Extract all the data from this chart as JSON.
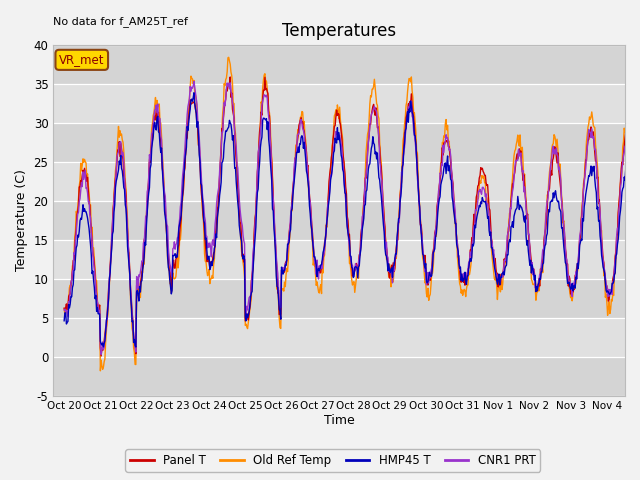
{
  "title": "Temperatures",
  "xlabel": "Time",
  "ylabel": "Temperature (C)",
  "ylim": [
    -5,
    40
  ],
  "background_color": "#e8e8e8",
  "figure_bg": "#f2f2f2",
  "no_data_text": "No data for f_AM25T_ref",
  "vr_met_label": "VR_met",
  "xtick_labels": [
    "Oct 20",
    "Oct 21",
    "Oct 22",
    "Oct 23",
    "Oct 24",
    "Oct 25",
    "Oct 26",
    "Oct 27",
    "Oct 28",
    "Oct 29",
    "Oct 30",
    "Oct 31",
    "Nov 1",
    "Nov 2",
    "Nov 3",
    "Nov 4"
  ],
  "legend_labels": [
    "Panel T",
    "Old Ref Temp",
    "HMP45 T",
    "CNR1 PRT"
  ],
  "line_colors": [
    "#cc0000",
    "#ff8c00",
    "#0000bb",
    "#9933cc"
  ],
  "ytick_positions": [
    -5,
    0,
    5,
    10,
    15,
    20,
    25,
    30,
    35,
    40
  ],
  "title_fontsize": 12,
  "band_colors": [
    "#d4d4d4",
    "#e0e0e0"
  ],
  "daily_max_panel": [
    24,
    27,
    31,
    33,
    35,
    35,
    30,
    31,
    32,
    33,
    28,
    24,
    26,
    26,
    29,
    29
  ],
  "daily_min_panel": [
    6,
    1,
    9,
    12,
    12,
    5,
    11,
    11,
    11,
    11,
    10,
    10,
    10,
    9,
    9,
    8
  ],
  "daily_max_orange": [
    25,
    29,
    33,
    35,
    38,
    36,
    31,
    32,
    35,
    35,
    29,
    23,
    28,
    28,
    31,
    30
  ],
  "daily_min_orange": [
    6,
    -1,
    8,
    10,
    10,
    4,
    9,
    9,
    10,
    10,
    8,
    8,
    9,
    8,
    8,
    6
  ],
  "daily_max_blue": [
    19,
    25,
    30,
    33,
    30,
    31,
    28,
    28,
    27,
    32,
    25,
    20,
    20,
    21,
    24,
    24
  ],
  "daily_min_blue": [
    5,
    1,
    8,
    13,
    12,
    5,
    11,
    11,
    11,
    11,
    10,
    10,
    10,
    9,
    9,
    8
  ],
  "daily_max_purple": [
    23,
    27,
    32,
    35,
    35,
    34,
    30,
    29,
    32,
    32,
    28,
    22,
    26,
    27,
    29,
    28
  ],
  "daily_min_purple": [
    6,
    1,
    10,
    14,
    14,
    6,
    11,
    11,
    11,
    11,
    10,
    10,
    10,
    9,
    9,
    8
  ]
}
